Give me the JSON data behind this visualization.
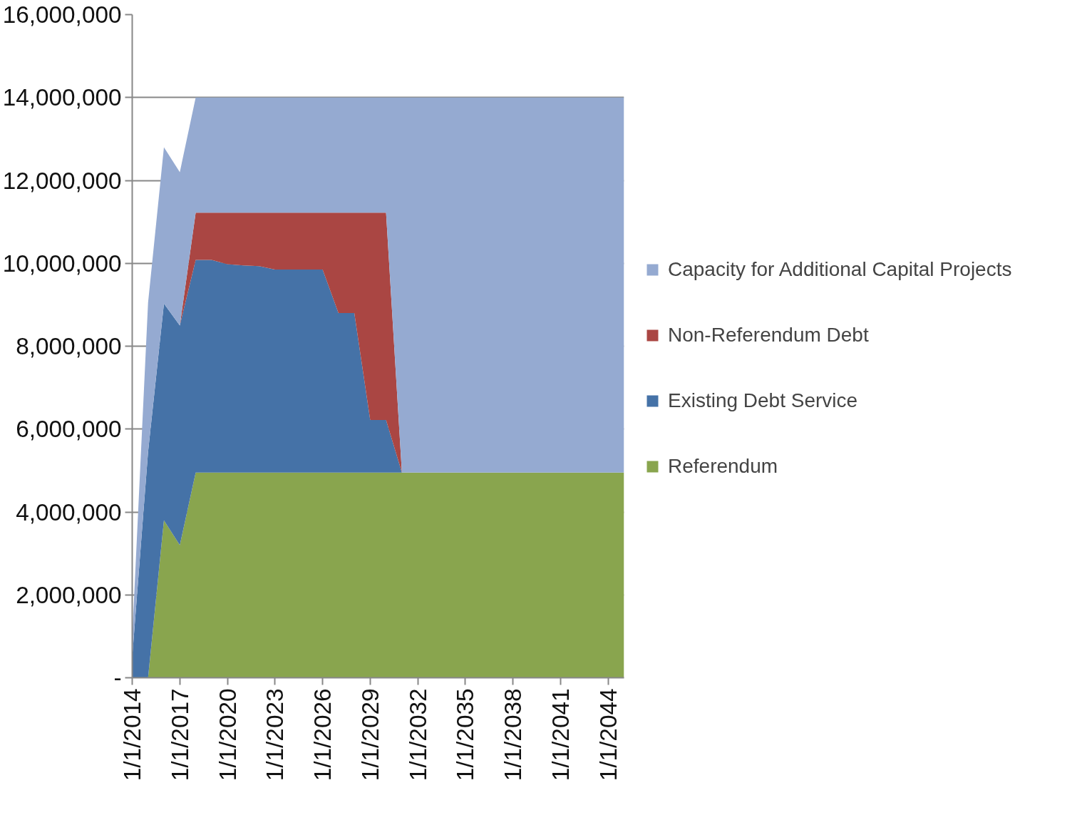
{
  "chart_data": {
    "type": "area",
    "stacked": true,
    "x": [
      "2014-01-01",
      "2015-01-01",
      "2016-01-01",
      "2017-01-01",
      "2018-01-01",
      "2019-01-01",
      "2020-01-01",
      "2021-01-01",
      "2022-01-01",
      "2023-01-01",
      "2024-01-01",
      "2025-01-01",
      "2026-01-01",
      "2027-01-01",
      "2028-01-01",
      "2029-01-01",
      "2030-01-01",
      "2031-01-01",
      "2032-01-01",
      "2033-01-01",
      "2034-01-01",
      "2035-01-01",
      "2036-01-01",
      "2037-01-01",
      "2038-01-01",
      "2039-01-01",
      "2040-01-01",
      "2041-01-01",
      "2042-01-01",
      "2043-01-01",
      "2044-01-01",
      "2045-01-01"
    ],
    "series": [
      {
        "name": "Referendum",
        "color": "#89a54e",
        "values": [
          0,
          0,
          3800000,
          3200000,
          4950000,
          4950000,
          4950000,
          4950000,
          4950000,
          4950000,
          4950000,
          4950000,
          4950000,
          4950000,
          4950000,
          4950000,
          4950000,
          4950000,
          4950000,
          4950000,
          4950000,
          4950000,
          4950000,
          4950000,
          4950000,
          4950000,
          4950000,
          4950000,
          4950000,
          4950000,
          4950000,
          4950000
        ]
      },
      {
        "name": "Existing Debt Service",
        "color": "#4572a7",
        "values": [
          500000,
          5450000,
          5230000,
          5300000,
          5130000,
          5130000,
          5030000,
          5000000,
          4980000,
          4900000,
          4900000,
          4900000,
          4900000,
          3850000,
          3850000,
          1270000,
          1270000,
          0,
          0,
          0,
          0,
          0,
          0,
          0,
          0,
          0,
          0,
          0,
          0,
          0,
          0,
          0
        ]
      },
      {
        "name": "Non-Referendum Debt",
        "color": "#aa4643",
        "values": [
          0,
          0,
          0,
          0,
          1140000,
          1140000,
          1240000,
          1270000,
          1290000,
          1370000,
          1370000,
          1370000,
          1370000,
          2420000,
          2420000,
          5000000,
          5000000,
          0,
          0,
          0,
          0,
          0,
          0,
          0,
          0,
          0,
          0,
          0,
          0,
          0,
          0,
          0
        ]
      },
      {
        "name": "Capacity for Additional Capital Projects",
        "color": "#95aad1",
        "values": [
          500000,
          3600000,
          3770000,
          3700000,
          2780000,
          2780000,
          2780000,
          2780000,
          2780000,
          2780000,
          2780000,
          2780000,
          2780000,
          2780000,
          2780000,
          2780000,
          2780000,
          9050000,
          9050000,
          9050000,
          9050000,
          9050000,
          9050000,
          9050000,
          9050000,
          9050000,
          9050000,
          9050000,
          9050000,
          9050000,
          9050000,
          9050000
        ]
      }
    ],
    "xlim": [
      "2014-01-01",
      "2045-01-01"
    ],
    "xticks": [
      {
        "value": "2014-01-01",
        "label": "1/1/2014"
      },
      {
        "value": "2017-01-01",
        "label": "1/1/2017"
      },
      {
        "value": "2020-01-01",
        "label": "1/1/2020"
      },
      {
        "value": "2023-01-01",
        "label": "1/1/2023"
      },
      {
        "value": "2026-01-01",
        "label": "1/1/2026"
      },
      {
        "value": "2029-01-01",
        "label": "1/1/2029"
      },
      {
        "value": "2032-01-01",
        "label": "1/1/2032"
      },
      {
        "value": "2035-01-01",
        "label": "1/1/2035"
      },
      {
        "value": "2038-01-01",
        "label": "1/1/2038"
      },
      {
        "value": "2041-01-01",
        "label": "1/1/2041"
      },
      {
        "value": "2044-01-01",
        "label": "1/1/2044"
      }
    ],
    "ylim": [
      0,
      16000000
    ],
    "yticks": [
      {
        "value": 0,
        "label": "-"
      },
      {
        "value": 2000000,
        "label": "2,000,000"
      },
      {
        "value": 4000000,
        "label": "4,000,000"
      },
      {
        "value": 6000000,
        "label": "6,000,000"
      },
      {
        "value": 8000000,
        "label": "8,000,000"
      },
      {
        "value": 10000000,
        "label": "10,000,000"
      },
      {
        "value": 12000000,
        "label": "12,000,000"
      },
      {
        "value": 14000000,
        "label": "14,000,000"
      },
      {
        "value": 16000000,
        "label": "16,000,000"
      }
    ],
    "grid": "y",
    "legend": "right"
  }
}
